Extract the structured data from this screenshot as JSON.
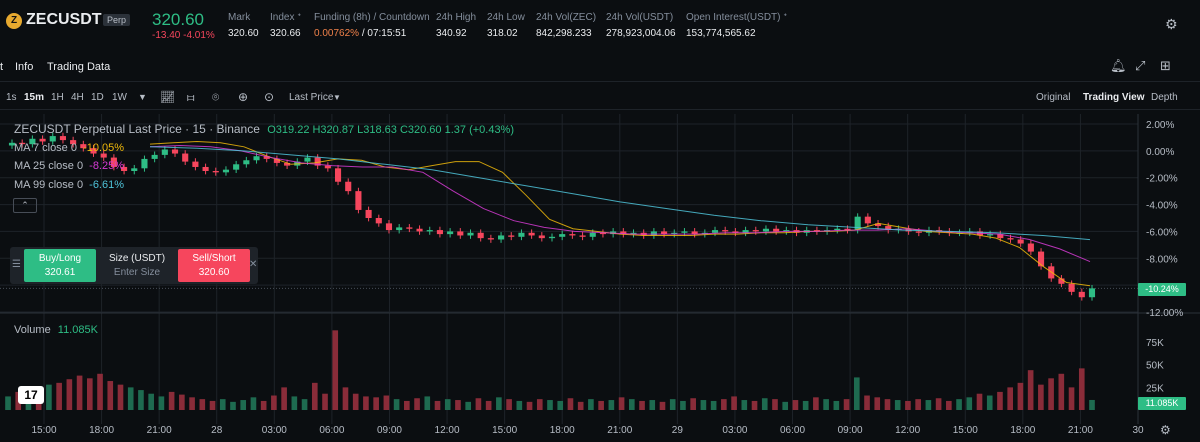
{
  "header": {
    "symbol": "ZECUSDT",
    "badge": "Perp",
    "coin_glyph": "Z",
    "last_price": "320.60",
    "change": "-13.40 -4.01%",
    "stats": [
      {
        "label": "Mark",
        "value": "320.60"
      },
      {
        "label": "Index ᐩ",
        "value": "320.66"
      },
      {
        "label": "Funding (8h) / Countdown",
        "value": "0.00762%",
        "value2": " / 07:15:51"
      },
      {
        "label": "24h High",
        "value": "340.92"
      },
      {
        "label": "24h Low",
        "value": "318.02"
      },
      {
        "label": "24h Vol(ZEC)",
        "value": "842,298.233"
      },
      {
        "label": "24h Vol(USDT)",
        "value": "278,923,004.06"
      },
      {
        "label": "Open Interest(USDT) ᐩ",
        "value": "153,774,565.62"
      }
    ]
  },
  "tabs": [
    "t",
    "Info",
    "Trading Data"
  ],
  "toolbar": {
    "timeframes": [
      "1s",
      "15m",
      "1H",
      "4H",
      "1D",
      "1W"
    ],
    "active_timeframe": "15m",
    "price_type": "Last Price",
    "views": [
      "Original",
      "Trading View",
      "Depth"
    ],
    "active_view": "Trading View"
  },
  "legend": {
    "title": "ZECUSDT Perpetual Last Price · 15 · Binance",
    "ohlc": "O319.22  H320.87  L318.63  C320.60  1.37 (+0.43%)",
    "ma": [
      {
        "label": "MA 7 close 0",
        "value": "-10.05%",
        "color": "#f0b90b"
      },
      {
        "label": "MA 25 close 0",
        "value": "-8.25%",
        "color": "#d63bd4"
      },
      {
        "label": "MA 99 close 0",
        "value": "-6.61%",
        "color": "#4fc3d9"
      }
    ]
  },
  "trade_widget": {
    "buy_label": "Buy/Long",
    "buy_price": "320.61",
    "size_label": "Size (USDT)",
    "size_placeholder": "Enter Size",
    "sell_label": "Sell/Short",
    "sell_price": "320.60"
  },
  "axis": {
    "y_labels": [
      "2.00%",
      "0.00%",
      "-2.00%",
      "-4.00%",
      "-6.00%",
      "-8.00%",
      "-10.24%",
      "-12.00%"
    ],
    "current_tag": "-10.24%",
    "volume_labels": [
      "75K",
      "50K",
      "25K"
    ],
    "volume_tag": "11.085K",
    "x_labels": [
      "15:00",
      "18:00",
      "21:00",
      "28",
      "03:00",
      "06:00",
      "09:00",
      "12:00",
      "15:00",
      "18:00",
      "21:00",
      "29",
      "03:00",
      "06:00",
      "09:00",
      "12:00",
      "15:00",
      "18:00",
      "21:00",
      "30"
    ]
  },
  "volume_legend": {
    "label": "Volume",
    "value": "11.085K"
  },
  "colors": {
    "up": "#2ebd85",
    "down": "#f6465d",
    "bg": "#0b0e11"
  },
  "chart_data": {
    "type": "candlestick",
    "interval": "15m",
    "y_unit": "% change",
    "closes": [
      0.6,
      0.5,
      0.9,
      0.7,
      1.1,
      0.8,
      0.5,
      0.2,
      -0.2,
      -0.5,
      -1.2,
      -1.5,
      -1.3,
      -0.6,
      -0.3,
      0.1,
      -0.2,
      -0.8,
      -1.2,
      -1.5,
      -1.6,
      -1.4,
      -1.0,
      -0.7,
      -0.4,
      -0.6,
      -0.9,
      -1.1,
      -0.8,
      -0.5,
      -1.1,
      -1.3,
      -2.3,
      -3.0,
      -4.4,
      -5.0,
      -5.4,
      -5.9,
      -5.7,
      -5.8,
      -6.0,
      -5.9,
      -6.2,
      -6.0,
      -6.3,
      -6.1,
      -6.5,
      -6.6,
      -6.3,
      -6.4,
      -6.1,
      -6.3,
      -6.5,
      -6.4,
      -6.2,
      -6.3,
      -6.4,
      -6.1,
      -6.2,
      -6.0,
      -6.2,
      -6.1,
      -6.3,
      -6.0,
      -6.2,
      -6.1,
      -6.0,
      -6.2,
      -6.1,
      -5.9,
      -6.0,
      -6.1,
      -5.9,
      -6.0,
      -5.8,
      -6.0,
      -5.9,
      -6.1,
      -5.9,
      -6.0,
      -5.9,
      -5.8,
      -5.9,
      -4.9,
      -5.4,
      -5.6,
      -5.9,
      -5.8,
      -6.0,
      -6.1,
      -5.9,
      -6.0,
      -6.1,
      -6.1,
      -6.0,
      -6.3,
      -6.2,
      -6.5,
      -6.6,
      -6.9,
      -7.5,
      -8.6,
      -9.5,
      -9.9,
      -10.5,
      -10.9,
      -10.24
    ],
    "ma_series": [
      {
        "name": "MA 7",
        "values": [
          0.5,
          0.6,
          0.7,
          0.6,
          0.3,
          -0.4,
          -1.0,
          -0.9,
          -0.6,
          -0.7,
          -1.2,
          -1.4,
          -1.1,
          -0.8,
          -0.8,
          -1.6,
          -3.3,
          -5.1,
          -5.8,
          -6.0,
          -6.2,
          -6.3,
          -6.3,
          -6.3,
          -6.2,
          -6.2,
          -6.1,
          -6.1,
          -6.0,
          -6.0,
          -5.9,
          -5.4,
          -5.7,
          -6.0,
          -6.1,
          -6.2,
          -6.5,
          -7.2,
          -8.6,
          -9.8,
          -10.05
        ]
      },
      {
        "name": "MA 25",
        "values": [
          0.3,
          0.4,
          0.3,
          0.0,
          -0.5,
          -0.9,
          -1.1,
          -1.2,
          -1.2,
          -1.6,
          -3.0,
          -4.3,
          -5.2,
          -5.7,
          -6.0,
          -6.1,
          -6.2,
          -6.2,
          -6.2,
          -6.1,
          -6.1,
          -6.0,
          -6.0,
          -5.9,
          -5.9,
          -5.8,
          -6.0,
          -6.1,
          -6.2,
          -6.6,
          -7.3,
          -8.25
        ]
      },
      {
        "name": "MA 99",
        "values": [
          0.3,
          0.2,
          0.0,
          -0.3,
          -0.6,
          -1.0,
          -1.4,
          -2.0,
          -2.6,
          -3.2,
          -3.8,
          -4.3,
          -4.8,
          -5.2,
          -5.5,
          -5.7,
          -5.9,
          -6.0,
          -6.1,
          -6.3,
          -6.61
        ]
      }
    ],
    "volume_k": [
      15,
      20,
      25,
      22,
      28,
      30,
      34,
      38,
      35,
      40,
      32,
      28,
      25,
      22,
      18,
      15,
      20,
      17,
      14,
      12,
      10,
      12,
      9,
      11,
      14,
      10,
      16,
      25,
      15,
      12,
      30,
      18,
      88,
      25,
      18,
      15,
      14,
      16,
      12,
      10,
      13,
      15,
      10,
      12,
      11,
      9,
      13,
      10,
      14,
      12,
      10,
      9,
      12,
      11,
      10,
      13,
      9,
      12,
      10,
      11,
      14,
      12,
      10,
      11,
      9,
      12,
      10,
      13,
      11,
      10,
      12,
      15,
      11,
      10,
      13,
      12,
      9,
      11,
      10,
      14,
      12,
      10,
      12,
      36,
      16,
      14,
      12,
      11,
      10,
      12,
      11,
      13,
      10,
      12,
      14,
      18,
      16,
      20,
      25,
      30,
      44,
      28,
      35,
      40,
      25,
      46,
      11.085
    ],
    "ylim": [
      -12,
      2
    ],
    "volume_ylim": [
      0,
      95
    ]
  }
}
